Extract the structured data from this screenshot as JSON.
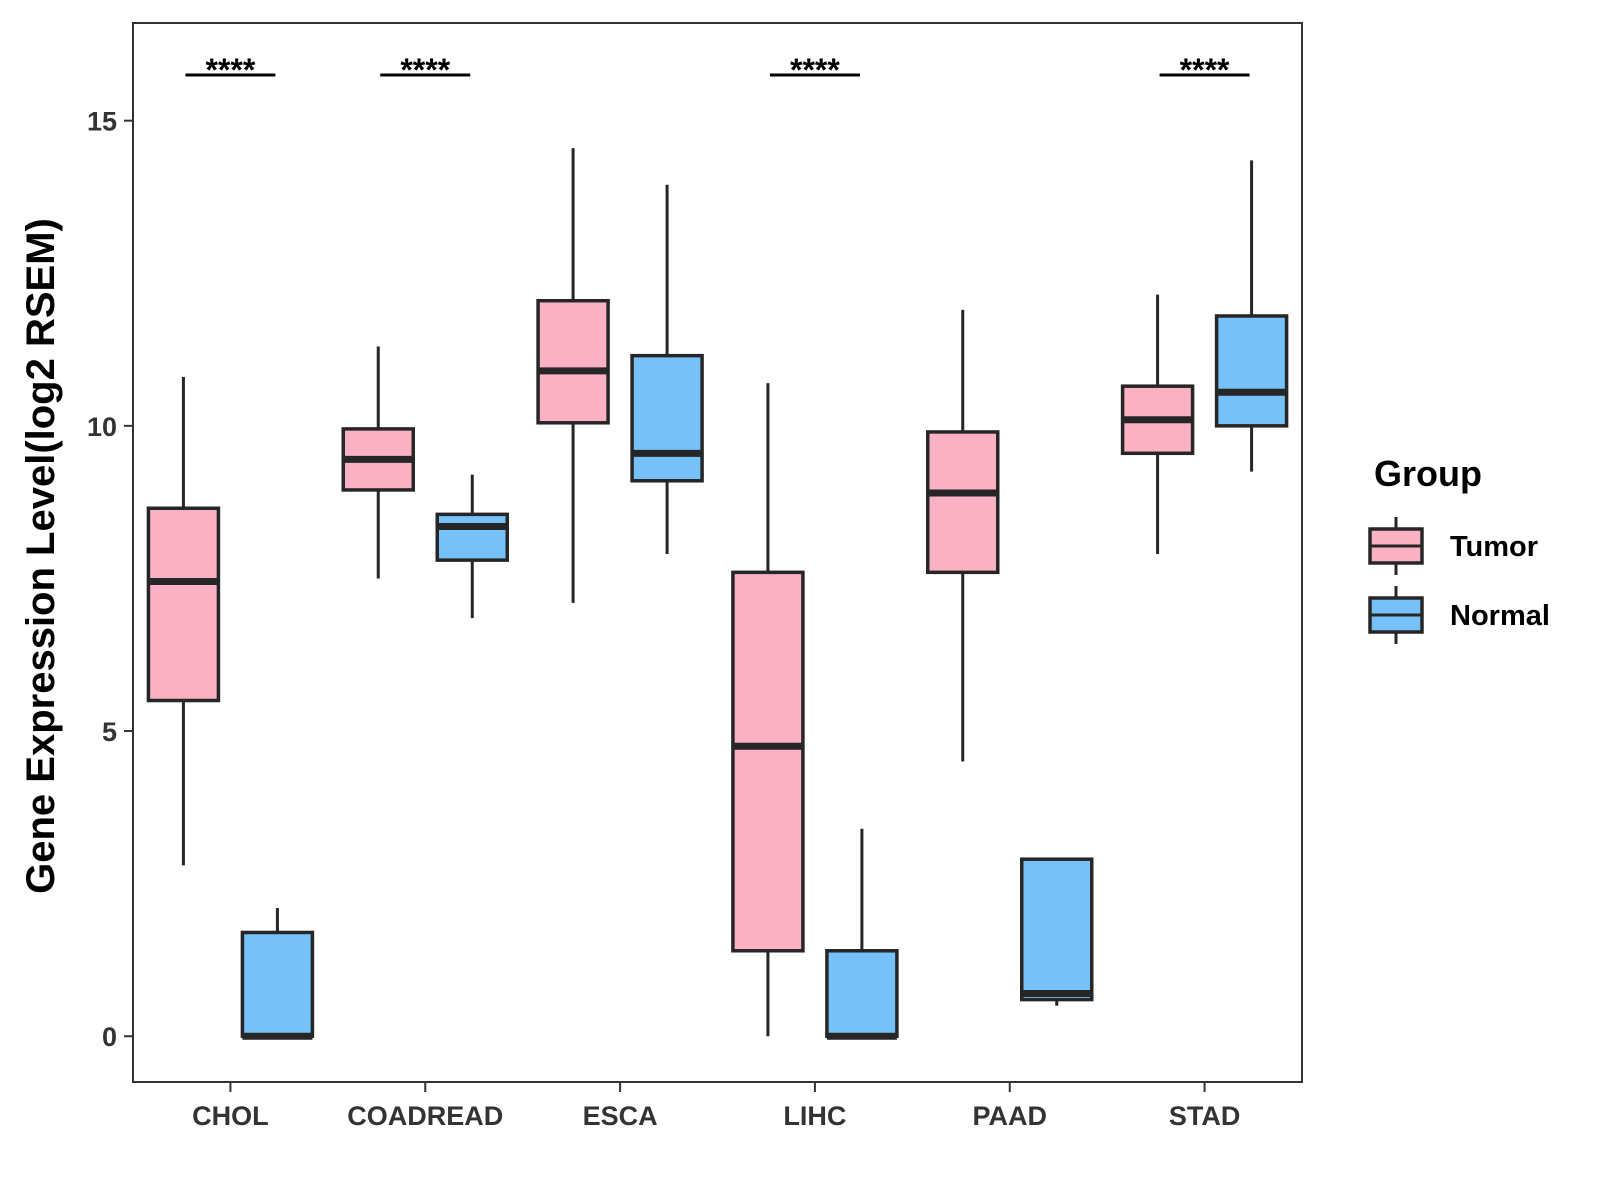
{
  "chart_data": {
    "type": "boxplot",
    "title": "",
    "xlabel": "",
    "ylabel": "Gene Expression Level(log2 RSEM)",
    "ylim": [
      -0.75,
      16.6
    ],
    "yticks": [
      0,
      5,
      10,
      15
    ],
    "grid": false,
    "categories": [
      "CHOL",
      "COADREAD",
      "ESCA",
      "LIHC",
      "PAAD",
      "STAD"
    ],
    "legend": {
      "title": "Group",
      "position": "right",
      "items": [
        {
          "label": "Tumor",
          "color": "#FBB1C4"
        },
        {
          "label": "Normal",
          "color": "#76C1F8"
        }
      ]
    },
    "series": [
      {
        "name": "Tumor",
        "color": "#FBB1C4",
        "boxes": [
          {
            "category": "CHOL",
            "min": 2.8,
            "q1": 5.5,
            "median": 7.45,
            "q3": 8.65,
            "max": 10.8
          },
          {
            "category": "COADREAD",
            "min": 7.5,
            "q1": 8.95,
            "median": 9.45,
            "q3": 9.95,
            "max": 11.3
          },
          {
            "category": "ESCA",
            "min": 7.1,
            "q1": 10.05,
            "median": 10.9,
            "q3": 12.05,
            "max": 14.55
          },
          {
            "category": "LIHC",
            "min": 0.0,
            "q1": 1.4,
            "median": 4.75,
            "q3": 7.6,
            "max": 10.7
          },
          {
            "category": "PAAD",
            "min": 4.5,
            "q1": 7.6,
            "median": 8.9,
            "q3": 9.9,
            "max": 11.9
          },
          {
            "category": "STAD",
            "min": 7.9,
            "q1": 9.55,
            "median": 10.1,
            "q3": 10.65,
            "max": 12.15
          }
        ]
      },
      {
        "name": "Normal",
        "color": "#76C1F8",
        "boxes": [
          {
            "category": "CHOL",
            "min": 0.0,
            "q1": 0.0,
            "median": 0.0,
            "q3": 1.7,
            "max": 2.1
          },
          {
            "category": "COADREAD",
            "min": 6.85,
            "q1": 7.8,
            "median": 8.35,
            "q3": 8.55,
            "max": 9.2
          },
          {
            "category": "ESCA",
            "min": 7.9,
            "q1": 9.1,
            "median": 9.55,
            "q3": 11.15,
            "max": 13.95
          },
          {
            "category": "LIHC",
            "min": 0.0,
            "q1": 0.0,
            "median": 0.0,
            "q3": 1.4,
            "max": 3.4
          },
          {
            "category": "PAAD",
            "min": 0.5,
            "q1": 0.6,
            "median": 0.7,
            "q3": 2.9,
            "max": 2.9
          },
          {
            "category": "STAD",
            "min": 9.25,
            "q1": 10.0,
            "median": 10.55,
            "q3": 11.8,
            "max": 14.35
          }
        ]
      }
    ],
    "annotations": [
      {
        "category": "CHOL",
        "text": "****"
      },
      {
        "category": "COADREAD",
        "text": "****"
      },
      {
        "category": "LIHC",
        "text": "****"
      },
      {
        "category": "STAD",
        "text": "****"
      }
    ]
  }
}
